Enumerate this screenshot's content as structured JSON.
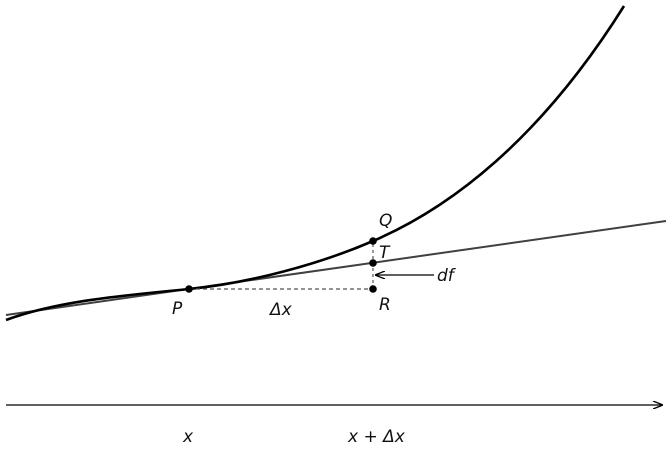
{
  "diagram": {
    "point_labels": {
      "p": "P",
      "q": "Q",
      "t": "T",
      "r": "R"
    },
    "delta_x_label": "Δx",
    "df_label": "df",
    "axis_labels": {
      "x": "x",
      "x_plus_dx": "x + Δx"
    },
    "colors": {
      "curve": "#000000",
      "tangent": "#404040",
      "dashed": "#555555",
      "axis": "#000000",
      "points": "#000000"
    }
  }
}
